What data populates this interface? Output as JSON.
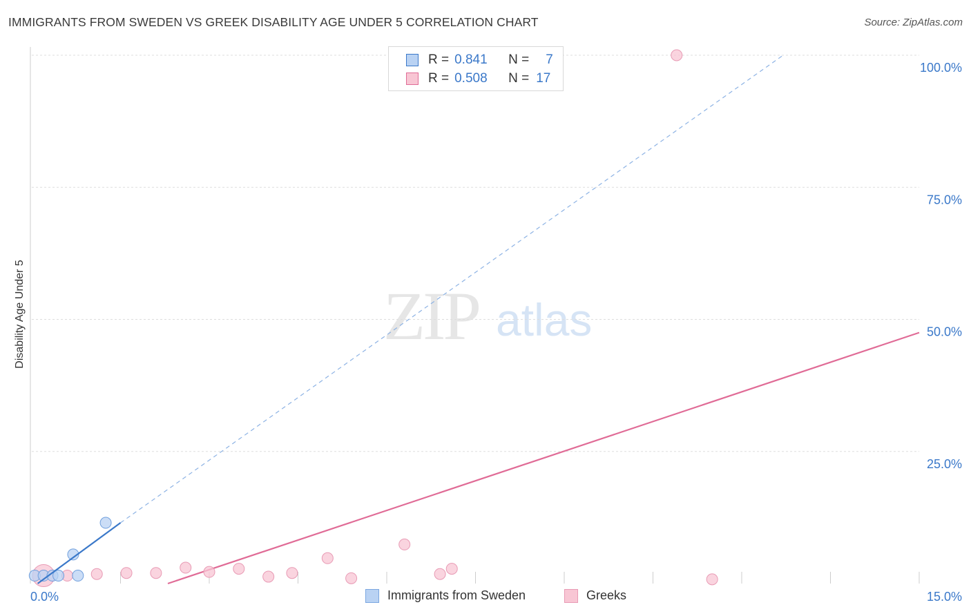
{
  "title": "IMMIGRANTS FROM SWEDEN VS GREEK DISABILITY AGE UNDER 5 CORRELATION CHART",
  "source": "Source: ZipAtlas.com",
  "watermark": {
    "zip": "ZIP",
    "atlas": "atlas"
  },
  "colors": {
    "blue": "#3a78c9",
    "blue_fill": "#b9d2f3",
    "pink": "#e06b96",
    "pink_fill": "#f8c6d4",
    "grid": "#dddddd"
  },
  "legend": {
    "rows": [
      {
        "r_label": "R =",
        "r_value": "0.841",
        "n_label": "N =",
        "n_value": "7"
      },
      {
        "r_label": "R =",
        "r_value": "0.508",
        "n_label": "N =",
        "n_value": "17"
      }
    ]
  },
  "bottom_legend": [
    {
      "label": "Immigrants from Sweden"
    },
    {
      "label": "Greeks"
    }
  ],
  "chart_data": {
    "type": "scatter",
    "title": "IMMIGRANTS FROM SWEDEN VS GREEK DISABILITY AGE UNDER 5 CORRELATION CHART",
    "xlabel": "",
    "ylabel": "Disability Age Under 5",
    "xlim": [
      0,
      15
    ],
    "ylim": [
      0,
      100
    ],
    "x_tick_labels": [
      "0.0%",
      "15.0%"
    ],
    "y_ticks": [
      25,
      50,
      75,
      100
    ],
    "y_tick_labels": [
      "25.0%",
      "50.0%",
      "75.0%",
      "100.0%"
    ],
    "series": [
      {
        "name": "Immigrants from Sweden",
        "points": [
          {
            "x": 0.05,
            "y": 1.5
          },
          {
            "x": 0.2,
            "y": 1.5
          },
          {
            "x": 0.35,
            "y": 1.5
          },
          {
            "x": 0.45,
            "y": 1.5
          },
          {
            "x": 0.7,
            "y": 5.5
          },
          {
            "x": 0.78,
            "y": 1.5
          },
          {
            "x": 1.25,
            "y": 11.5
          }
        ],
        "trend": {
          "x0": 0.1,
          "y0": 0.0,
          "x1": 1.5,
          "y1": 11.5,
          "dash_x1": 12.7,
          "dash_y1": 100
        }
      },
      {
        "name": "Greeks",
        "points": [
          {
            "x": 0.2,
            "y": 1.5
          },
          {
            "x": 0.6,
            "y": 1.5
          },
          {
            "x": 1.1,
            "y": 1.8
          },
          {
            "x": 1.6,
            "y": 2.0
          },
          {
            "x": 2.1,
            "y": 2.0
          },
          {
            "x": 2.6,
            "y": 3.0
          },
          {
            "x": 3.0,
            "y": 2.2
          },
          {
            "x": 3.5,
            "y": 2.8
          },
          {
            "x": 4.0,
            "y": 1.3
          },
          {
            "x": 4.4,
            "y": 2.0
          },
          {
            "x": 5.0,
            "y": 4.8
          },
          {
            "x": 5.4,
            "y": 1.0
          },
          {
            "x": 6.3,
            "y": 7.4
          },
          {
            "x": 6.9,
            "y": 1.8
          },
          {
            "x": 7.1,
            "y": 2.8
          },
          {
            "x": 10.9,
            "y": 100
          },
          {
            "x": 11.5,
            "y": 0.8
          }
        ],
        "trend": {
          "x0": 2.3,
          "y0": 0.0,
          "x1": 15.0,
          "y1": 47.5
        }
      }
    ]
  }
}
